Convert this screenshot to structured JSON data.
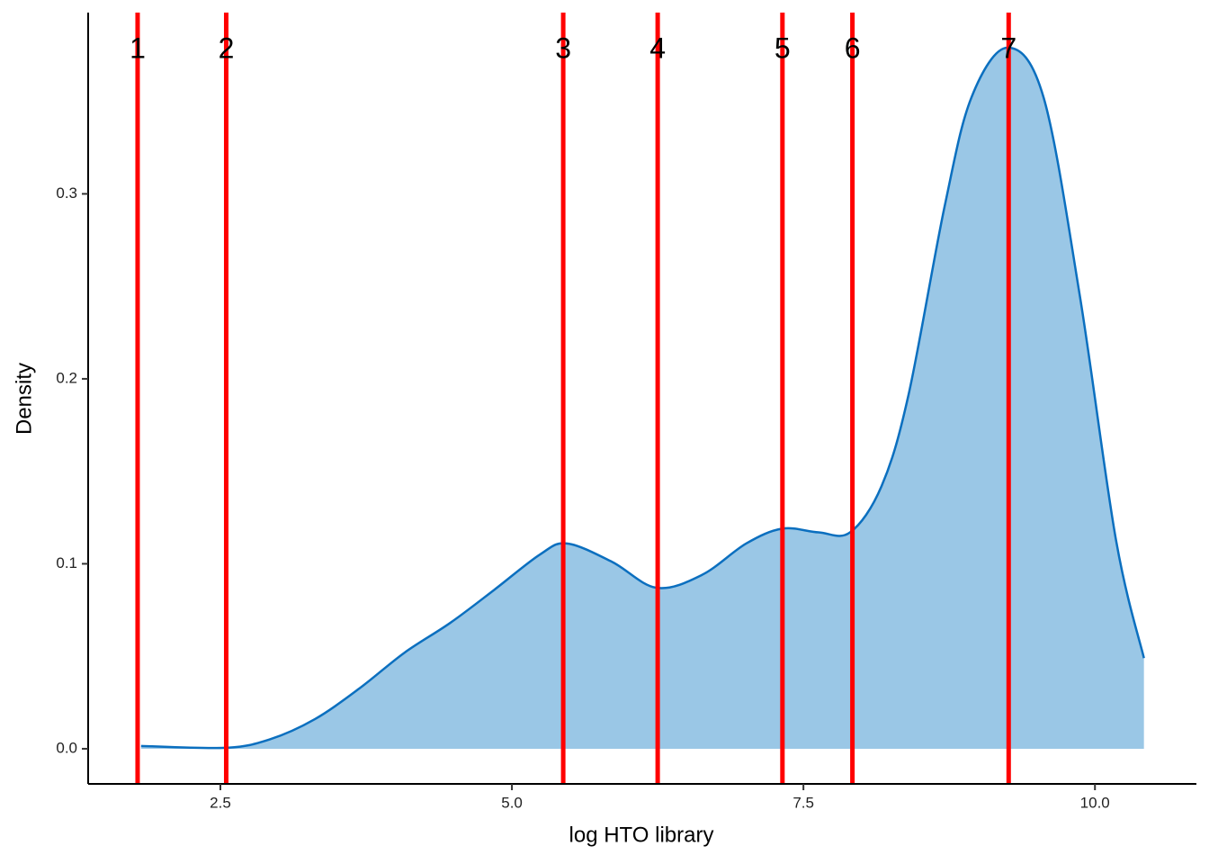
{
  "chart_data": {
    "type": "density",
    "x_label": "log HTO library",
    "y_label": "Density",
    "x": [
      1.82,
      2.54,
      2.92,
      3.31,
      3.7,
      4.08,
      4.47,
      4.85,
      5.24,
      5.47,
      5.86,
      6.24,
      6.63,
      7.01,
      7.32,
      7.63,
      7.9,
      8.17,
      8.4,
      8.71,
      8.94,
      9.25,
      9.56,
      9.87,
      10.18,
      10.42
    ],
    "values": [
      0.0015,
      0.0005,
      0.005,
      0.016,
      0.033,
      0.052,
      0.068,
      0.086,
      0.105,
      0.111,
      0.101,
      0.087,
      0.094,
      0.111,
      0.119,
      0.117,
      0.117,
      0.142,
      0.191,
      0.293,
      0.352,
      0.379,
      0.352,
      0.245,
      0.113,
      0.049
    ],
    "fill_color": "#9ac7e6",
    "line_color": "#0b6fbf",
    "vlines": [
      {
        "x": 1.79,
        "label": "1"
      },
      {
        "x": 2.55,
        "label": "2"
      },
      {
        "x": 5.44,
        "label": "3"
      },
      {
        "x": 6.25,
        "label": "4"
      },
      {
        "x": 7.32,
        "label": "5"
      },
      {
        "x": 7.92,
        "label": "6"
      },
      {
        "x": 9.26,
        "label": "7"
      }
    ],
    "vline_color": "#ff0000",
    "xlim": [
      1.366,
      10.87
    ],
    "ylim": [
      -0.019,
      0.398
    ],
    "xticks": [
      {
        "value": 2.5,
        "label": "2.5"
      },
      {
        "value": 5,
        "label": "5.0"
      },
      {
        "value": 7.5,
        "label": "7.5"
      },
      {
        "value": 10,
        "label": "10.0"
      }
    ],
    "yticks": [
      {
        "value": 0,
        "label": "0.0"
      },
      0.1,
      0.2,
      0.3
    ],
    "grid": false
  }
}
